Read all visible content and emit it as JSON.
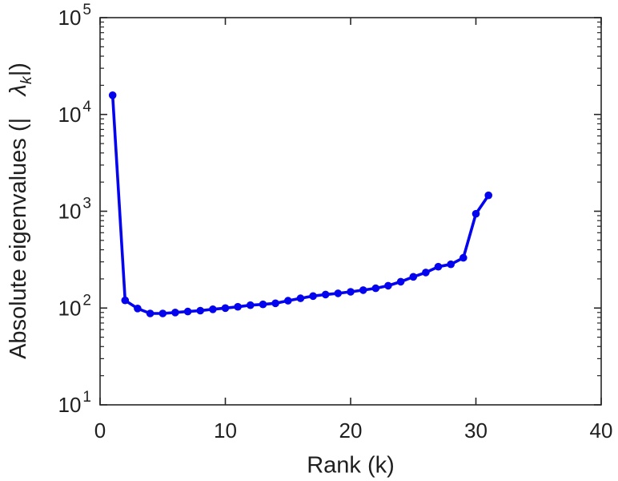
{
  "figure": {
    "background": "#ffffff",
    "axis_color": "#262626",
    "tick_label_color": "#1f1f1f",
    "line_color": "#0404ee",
    "marker_style": "filled-circle"
  },
  "chart_data": {
    "type": "line",
    "title": "",
    "xlabel": "Rank (k)",
    "ylabel": "Absolute eigenvalues (| λk|)",
    "ylabel_parts": {
      "prefix": "Absolute eigenvalues (|",
      "lambda": "λ",
      "subscript": "k",
      "suffix": "|)"
    },
    "x_scale": "linear",
    "y_scale": "log",
    "xlim": [
      0,
      40
    ],
    "ylim": [
      10,
      100000
    ],
    "grid": false,
    "legend": null,
    "x_ticks": [
      0,
      10,
      20,
      30,
      40
    ],
    "y_tick_base": "10",
    "y_tick_exponents": [
      1,
      2,
      3,
      4,
      5
    ],
    "x": [
      1,
      2,
      3,
      4,
      5,
      6,
      7,
      8,
      9,
      10,
      11,
      12,
      13,
      14,
      15,
      16,
      17,
      18,
      19,
      20,
      21,
      22,
      23,
      24,
      25,
      26,
      27,
      28,
      29,
      30,
      31
    ],
    "values": [
      15800,
      120,
      99,
      88,
      88,
      90,
      92,
      94,
      97,
      100,
      103,
      107,
      109,
      112,
      119,
      126,
      133,
      138,
      142,
      147,
      153,
      160,
      170,
      187,
      210,
      233,
      267,
      283,
      330,
      940,
      1460
    ],
    "series": [
      {
        "name": "absolute-eigenvalues",
        "marker": "o",
        "color": "#0404ee"
      }
    ]
  }
}
